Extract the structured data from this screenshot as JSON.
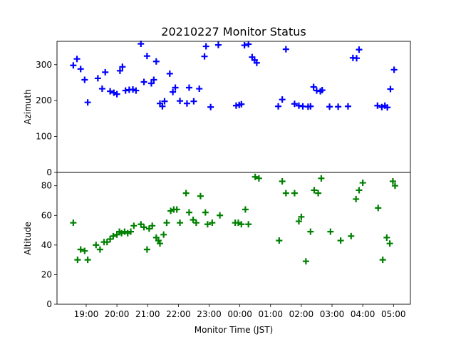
{
  "title": "20210227 Monitor Status",
  "xlabel": "Monitor Time (JST)",
  "x_ticks": [
    "19:00",
    "20:00",
    "21:00",
    "22:00",
    "23:00",
    "00:00",
    "01:00",
    "02:00",
    "03:00",
    "04:00",
    "05:00"
  ],
  "chart_data": [
    {
      "type": "scatter",
      "title": "20210227 Monitor Status",
      "xlabel": "",
      "ylabel": "Azimuth",
      "x_unit": "hours after 18:00 JST",
      "xlim": [
        18.05,
        29.55
      ],
      "ylim": [
        0,
        365
      ],
      "y_ticks": [
        0,
        100,
        200,
        300
      ],
      "grid": false,
      "series": [
        {
          "color": "#0000ff",
          "marker": "plus",
          "points": [
            [
              18.58,
              298
            ],
            [
              18.7,
              316
            ],
            [
              18.82,
              288
            ],
            [
              18.95,
              258
            ],
            [
              19.05,
              195
            ],
            [
              19.38,
              262
            ],
            [
              19.52,
              233
            ],
            [
              19.62,
              279
            ],
            [
              19.78,
              226
            ],
            [
              19.9,
              222
            ],
            [
              20.0,
              218
            ],
            [
              20.1,
              283
            ],
            [
              20.18,
              294
            ],
            [
              20.28,
              228
            ],
            [
              20.4,
              230
            ],
            [
              20.52,
              231
            ],
            [
              20.62,
              228
            ],
            [
              20.78,
              358
            ],
            [
              20.88,
              252
            ],
            [
              20.98,
              324
            ],
            [
              21.12,
              248
            ],
            [
              21.2,
              258
            ],
            [
              21.28,
              309
            ],
            [
              21.4,
              192
            ],
            [
              21.48,
              184
            ],
            [
              21.55,
              198
            ],
            [
              21.72,
              275
            ],
            [
              21.82,
              224
            ],
            [
              21.9,
              236
            ],
            [
              22.05,
              199
            ],
            [
              22.28,
              192
            ],
            [
              22.35,
              236
            ],
            [
              22.5,
              198
            ],
            [
              22.68,
              233
            ],
            [
              22.85,
              323
            ],
            [
              22.9,
              351
            ],
            [
              23.05,
              182
            ],
            [
              23.3,
              355
            ],
            [
              23.88,
              186
            ],
            [
              23.98,
              188
            ],
            [
              24.05,
              190
            ],
            [
              24.15,
              354
            ],
            [
              24.28,
              357
            ],
            [
              24.4,
              321
            ],
            [
              24.48,
              313
            ],
            [
              24.55,
              305
            ],
            [
              25.25,
              184
            ],
            [
              25.38,
              203
            ],
            [
              25.5,
              343
            ],
            [
              25.78,
              191
            ],
            [
              25.92,
              186
            ],
            [
              26.05,
              184
            ],
            [
              26.22,
              183
            ],
            [
              26.3,
              184
            ],
            [
              26.4,
              238
            ],
            [
              26.5,
              228
            ],
            [
              26.62,
              226
            ],
            [
              26.68,
              229
            ],
            [
              26.92,
              183
            ],
            [
              27.2,
              183
            ],
            [
              27.52,
              184
            ],
            [
              27.68,
              319
            ],
            [
              27.8,
              318
            ],
            [
              27.88,
              342
            ],
            [
              28.48,
              186
            ],
            [
              28.62,
              182
            ],
            [
              28.72,
              186
            ],
            [
              28.8,
              181
            ],
            [
              28.9,
              232
            ],
            [
              29.02,
              286
            ]
          ]
        }
      ]
    },
    {
      "type": "scatter",
      "title": "",
      "xlabel": "Monitor Time (JST)",
      "ylabel": "Altitude",
      "x_unit": "hours after 18:00 JST",
      "xlim": [
        18.05,
        29.55
      ],
      "ylim": [
        0,
        89
      ],
      "y_ticks": [
        0,
        20,
        40,
        60,
        80
      ],
      "grid": false,
      "series": [
        {
          "color": "#008000",
          "marker": "plus",
          "points": [
            [
              18.58,
              55
            ],
            [
              18.72,
              30
            ],
            [
              18.82,
              37
            ],
            [
              18.95,
              36
            ],
            [
              19.05,
              30
            ],
            [
              19.32,
              40
            ],
            [
              19.45,
              37
            ],
            [
              19.58,
              42
            ],
            [
              19.68,
              42
            ],
            [
              19.78,
              44
            ],
            [
              19.88,
              46
            ],
            [
              20.0,
              47
            ],
            [
              20.08,
              49
            ],
            [
              20.15,
              48
            ],
            [
              20.25,
              49
            ],
            [
              20.35,
              48
            ],
            [
              20.45,
              49
            ],
            [
              20.55,
              53
            ],
            [
              20.78,
              54
            ],
            [
              20.88,
              52
            ],
            [
              20.98,
              37
            ],
            [
              21.05,
              51
            ],
            [
              21.15,
              53
            ],
            [
              21.28,
              45
            ],
            [
              21.35,
              43
            ],
            [
              21.4,
              41
            ],
            [
              21.52,
              47
            ],
            [
              21.62,
              55
            ],
            [
              21.75,
              63
            ],
            [
              21.85,
              64
            ],
            [
              21.95,
              64
            ],
            [
              22.05,
              55
            ],
            [
              22.25,
              75
            ],
            [
              22.35,
              62
            ],
            [
              22.48,
              57
            ],
            [
              22.58,
              55
            ],
            [
              22.72,
              73
            ],
            [
              22.88,
              62
            ],
            [
              22.95,
              54
            ],
            [
              23.1,
              55
            ],
            [
              23.35,
              60
            ],
            [
              23.85,
              55
            ],
            [
              23.95,
              55
            ],
            [
              24.05,
              54
            ],
            [
              24.18,
              64
            ],
            [
              24.28,
              54
            ],
            [
              24.5,
              86
            ],
            [
              24.62,
              85
            ],
            [
              25.28,
              43
            ],
            [
              25.38,
              83
            ],
            [
              25.5,
              75
            ],
            [
              25.78,
              75
            ],
            [
              25.92,
              56
            ],
            [
              26.0,
              59
            ],
            [
              26.15,
              29
            ],
            [
              26.3,
              49
            ],
            [
              26.42,
              77
            ],
            [
              26.55,
              75
            ],
            [
              26.65,
              85
            ],
            [
              26.95,
              49
            ],
            [
              27.28,
              43
            ],
            [
              27.62,
              46
            ],
            [
              27.78,
              71
            ],
            [
              27.88,
              77
            ],
            [
              28.0,
              82
            ],
            [
              28.5,
              65
            ],
            [
              28.65,
              30
            ],
            [
              28.78,
              45
            ],
            [
              28.88,
              41
            ],
            [
              28.98,
              83
            ],
            [
              29.05,
              80
            ]
          ]
        }
      ]
    }
  ]
}
